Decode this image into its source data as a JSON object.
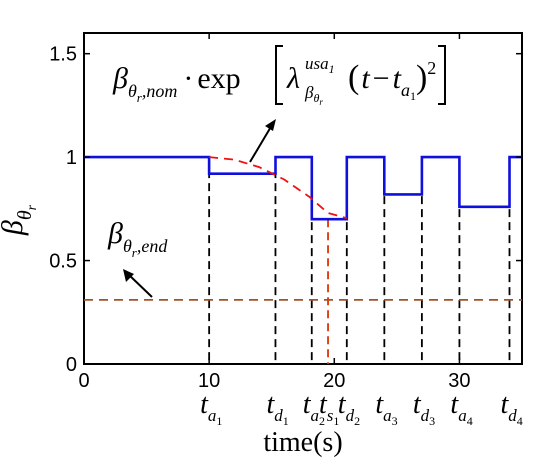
{
  "chart_data": {
    "type": "line",
    "title": "",
    "xlabel": "time(s)",
    "ylabel_symbol": "β",
    "ylabel_subscript": "θ",
    "ylabel_subsubscript": "r",
    "xlim": [
      0,
      35
    ],
    "ylim": [
      0,
      1.6
    ],
    "x_ticks": [
      0,
      10,
      20,
      30
    ],
    "y_ticks": [
      0,
      0.5,
      1,
      1.5
    ],
    "x_tick_labels": [
      "0",
      "10",
      "20",
      "30"
    ],
    "y_tick_labels": [
      "0",
      "0.5",
      "1",
      "1.5"
    ],
    "grid": false,
    "colors": {
      "beta_step": "#1010dd",
      "nominal_decay": "#ee1111",
      "end_threshold": "#a0522d",
      "event_marker": "#000000",
      "s1_marker": "#dd3300"
    },
    "series": [
      {
        "style": "solid",
        "color_key": "beta_step",
        "x": [
          0,
          10,
          10,
          15.3,
          15.3,
          18.2,
          18.2,
          21,
          21,
          24,
          24,
          27,
          27,
          30,
          30,
          34,
          34,
          35
        ],
        "y": [
          1,
          1,
          0.92,
          0.92,
          1,
          1,
          0.7,
          0.7,
          1,
          1,
          0.82,
          0.82,
          1,
          1,
          0.76,
          0.76,
          1,
          1
        ]
      },
      {
        "style": "dashed",
        "color_key": "nominal_decay",
        "x": [
          10,
          12,
          14,
          16,
          18,
          19.5,
          21
        ],
        "y": [
          1.0,
          0.988,
          0.952,
          0.892,
          0.808,
          0.73,
          0.705
        ]
      },
      {
        "style": "dashed",
        "color_key": "end_threshold",
        "x": [
          0,
          35
        ],
        "y": [
          0.31,
          0.31
        ]
      }
    ],
    "event_markers": [
      {
        "x": 10,
        "y_top": 1.0,
        "base": "t",
        "sub": "a",
        "subsub": "1",
        "color_key": "event_marker"
      },
      {
        "x": 15.3,
        "y_top": 1.0,
        "base": "t",
        "sub": "d",
        "subsub": "1",
        "color_key": "event_marker"
      },
      {
        "x": 18.2,
        "y_top": 1.0,
        "base": "t",
        "sub": "a",
        "subsub": "2",
        "color_key": "event_marker"
      },
      {
        "x": 19.5,
        "y_top": 0.7,
        "base": "t",
        "sub": "s",
        "subsub": "1",
        "color_key": "s1_marker"
      },
      {
        "x": 21,
        "y_top": 1.0,
        "base": "t",
        "sub": "d",
        "subsub": "2",
        "color_key": "event_marker"
      },
      {
        "x": 24,
        "y_top": 1.0,
        "base": "t",
        "sub": "a",
        "subsub": "3",
        "color_key": "event_marker"
      },
      {
        "x": 27,
        "y_top": 1.0,
        "base": "t",
        "sub": "d",
        "subsub": "3",
        "color_key": "event_marker"
      },
      {
        "x": 30,
        "y_top": 1.0,
        "base": "t",
        "sub": "a",
        "subsub": "4",
        "color_key": "event_marker"
      },
      {
        "x": 34,
        "y_top": 1.0,
        "base": "t",
        "sub": "d",
        "subsub": "4",
        "color_key": "event_marker"
      }
    ],
    "annotations": {
      "formula": {
        "beta": "β",
        "beta_sub": "θ",
        "beta_subsub": "r",
        "beta_subtail": ",nom",
        "dot": "·",
        "exp": "exp",
        "lambda": "λ",
        "lambda_sup": "usa",
        "lambda_sup_sub": "1",
        "lambda_sub": "β",
        "lambda_sub_sub": "θ",
        "lambda_sub_subsub": "r",
        "open_paren": "(",
        "t": "t",
        "minus": "−",
        "t2": "t",
        "t2_sub": "a",
        "t2_subsub": "1",
        "close_paren": ")",
        "power": "2"
      },
      "end_label": {
        "beta": "β",
        "beta_sub": "θ",
        "beta_subsub": "r",
        "beta_subtail": ",end"
      }
    }
  }
}
